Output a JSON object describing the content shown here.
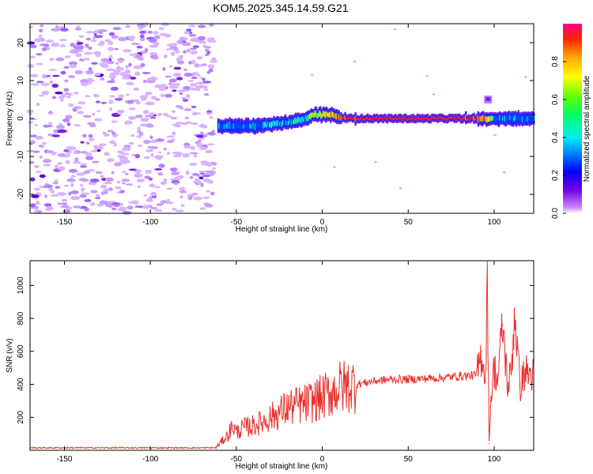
{
  "title": "KOM5.2025.345.14.59.G21",
  "spectrogram": {
    "xlabel": "Height of straight line (km)",
    "ylabel": "Frequency (Hz)",
    "xlim": [
      -170,
      123
    ],
    "ylim": [
      -25,
      25
    ],
    "xticks": [
      "-150",
      "-100",
      "-50",
      "0",
      "50",
      "100"
    ],
    "yticks": [
      "20",
      "10",
      "0",
      "-10",
      "-20"
    ],
    "signal_start_km": -61
  },
  "colorbar": {
    "label": "Normalized spectral amplitude",
    "ticks": [
      "0.0",
      "0.2",
      "0.4",
      "0.6",
      "0.8"
    ],
    "range": [
      0,
      1
    ]
  },
  "chart_data": [
    {
      "type": "heatmap",
      "title": "KOM5.2025.345.14.59.G21",
      "xlabel": "Height of straight line (km)",
      "ylabel": "Frequency (Hz)",
      "xlim": [
        -170,
        123
      ],
      "ylim": [
        -25,
        25
      ],
      "colorbar_label": "Normalized spectral amplitude",
      "colorbar_range": [
        0,
        1
      ],
      "track": {
        "x": [
          -61,
          -50,
          -40,
          -30,
          -20,
          -10,
          -5,
          0,
          5,
          10,
          20,
          40,
          60,
          80,
          94,
          100,
          110,
          123
        ],
        "freq_hz": [
          -2,
          -2,
          -2,
          -1.5,
          -1,
          0,
          1,
          1,
          1,
          0,
          0,
          0,
          0,
          0,
          0,
          0,
          0,
          0
        ],
        "amplitude": [
          0.35,
          0.35,
          0.4,
          0.45,
          0.45,
          0.5,
          0.6,
          0.7,
          0.8,
          0.95,
          1,
          1,
          1,
          1,
          0.9,
          0.35,
          0.35,
          0.35
        ]
      }
    },
    {
      "type": "line",
      "xlabel": "Height of straight line (km)",
      "ylabel": "SNR (v/v)",
      "xlim": [
        -170,
        123
      ],
      "ylim": [
        0,
        1150
      ],
      "xticks": [
        "-150",
        "-100",
        "-50",
        "0",
        "50",
        "100"
      ],
      "yticks": [
        "200",
        "400",
        "600",
        "800",
        "1000"
      ],
      "series": [
        {
          "name": "SNR",
          "color": "#e8302c",
          "x": [
            -170,
            -150,
            -100,
            -62,
            -58,
            -55,
            -52,
            -50,
            -45,
            -40,
            -35,
            -30,
            -25,
            -20,
            -15,
            -10,
            -5,
            0,
            5,
            10,
            15,
            20,
            25,
            30,
            35,
            40,
            50,
            60,
            70,
            80,
            90,
            93,
            95,
            96,
            97,
            98,
            100,
            102,
            105,
            108,
            110,
            112,
            115,
            118,
            120,
            123
          ],
          "y": [
            15,
            15,
            15,
            15,
            60,
            90,
            150,
            110,
            140,
            150,
            170,
            200,
            230,
            260,
            270,
            280,
            300,
            320,
            350,
            380,
            390,
            400,
            410,
            420,
            425,
            430,
            430,
            435,
            440,
            450,
            455,
            600,
            420,
            1150,
            40,
            300,
            500,
            420,
            760,
            380,
            480,
            860,
            380,
            480,
            460,
            460
          ]
        }
      ]
    }
  ]
}
